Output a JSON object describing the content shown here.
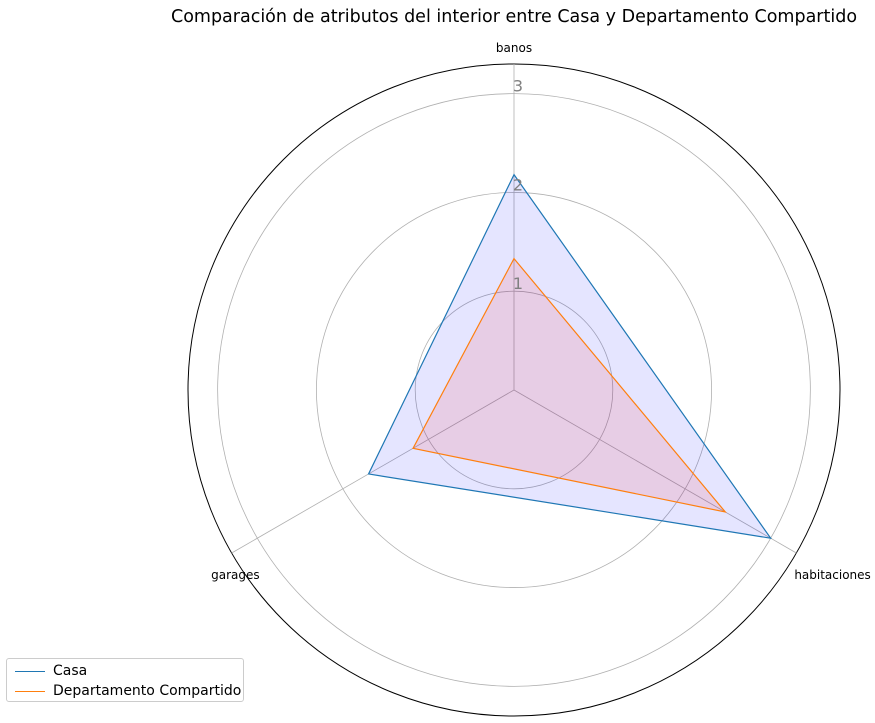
{
  "chart_data": {
    "type": "radar",
    "title": "Comparación de atributos del interior entre Casa y Departamento Compartido",
    "axes": [
      "banos",
      "habitaciones",
      "garages"
    ],
    "r_ticks": [
      "1",
      "2",
      "3"
    ],
    "r_tick_values": [
      1,
      2,
      3
    ],
    "rlim": [
      0,
      3.3
    ],
    "grid": true,
    "legend_position": "lower-left",
    "series": [
      {
        "name": "Casa",
        "values": [
          2.18,
          3.0,
          1.7
        ],
        "color": "#1f77b4",
        "fill": "#0000ff",
        "fill_opacity": 0.1
      },
      {
        "name": "Departamento Compartido",
        "values": [
          1.33,
          2.47,
          1.18
        ],
        "color": "#ff7f0e",
        "fill": "#ff0000",
        "fill_opacity": 0.1
      }
    ]
  }
}
